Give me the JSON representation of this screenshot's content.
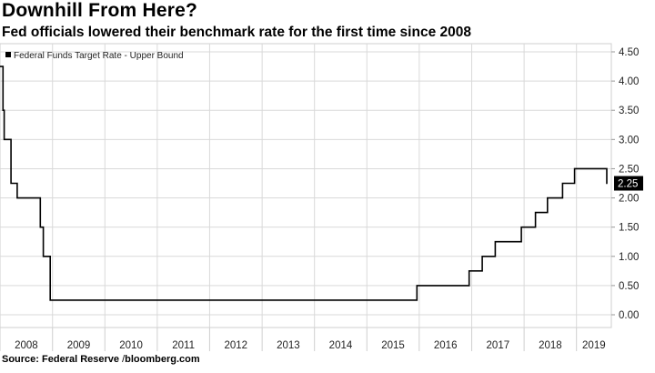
{
  "header": {
    "title": "Downhill From Here?",
    "subtitle": "Fed officials lowered their benchmark rate for the first time since 2008"
  },
  "footer": {
    "source_label": "Source:",
    "source_name": "Federal Reserve",
    "separator": "/",
    "site": "bloomberg.com"
  },
  "chart_data": {
    "type": "line",
    "title": "Downhill From Here?",
    "subtitle": "Fed officials lowered their benchmark rate for the first time since 2008",
    "legend": {
      "entries": [
        "Federal Funds Target Rate - Upper Bound"
      ],
      "placement": "top-left"
    },
    "series": [
      {
        "name": "Federal Funds Target Rate - Upper Bound",
        "color": "#000000",
        "step": true,
        "points": [
          [
            "2008-01-01",
            4.25
          ],
          [
            "2008-01-22",
            3.5
          ],
          [
            "2008-01-30",
            3.0
          ],
          [
            "2008-03-18",
            2.25
          ],
          [
            "2008-04-30",
            2.0
          ],
          [
            "2008-10-08",
            1.5
          ],
          [
            "2008-10-29",
            1.0
          ],
          [
            "2008-12-16",
            0.25
          ],
          [
            "2015-12-16",
            0.5
          ],
          [
            "2016-12-14",
            0.75
          ],
          [
            "2017-03-15",
            1.0
          ],
          [
            "2017-06-14",
            1.25
          ],
          [
            "2017-12-13",
            1.5
          ],
          [
            "2018-03-21",
            1.75
          ],
          [
            "2018-06-13",
            2.0
          ],
          [
            "2018-09-26",
            2.25
          ],
          [
            "2018-12-19",
            2.5
          ],
          [
            "2019-07-31",
            2.25
          ]
        ]
      }
    ],
    "x_ticks": [
      "2008",
      "2009",
      "2010",
      "2011",
      "2012",
      "2013",
      "2014",
      "2015",
      "2016",
      "2017",
      "2018",
      "2019"
    ],
    "y_ticks": [
      "0.00",
      "0.50",
      "1.00",
      "1.50",
      "2.00",
      "2.50",
      "3.00",
      "3.50",
      "4.00",
      "4.50"
    ],
    "ylim": [
      0,
      4.5
    ],
    "y_axis_side": "right",
    "grid": true,
    "last_value_label": "2.25",
    "xlabel": "",
    "ylabel": ""
  }
}
